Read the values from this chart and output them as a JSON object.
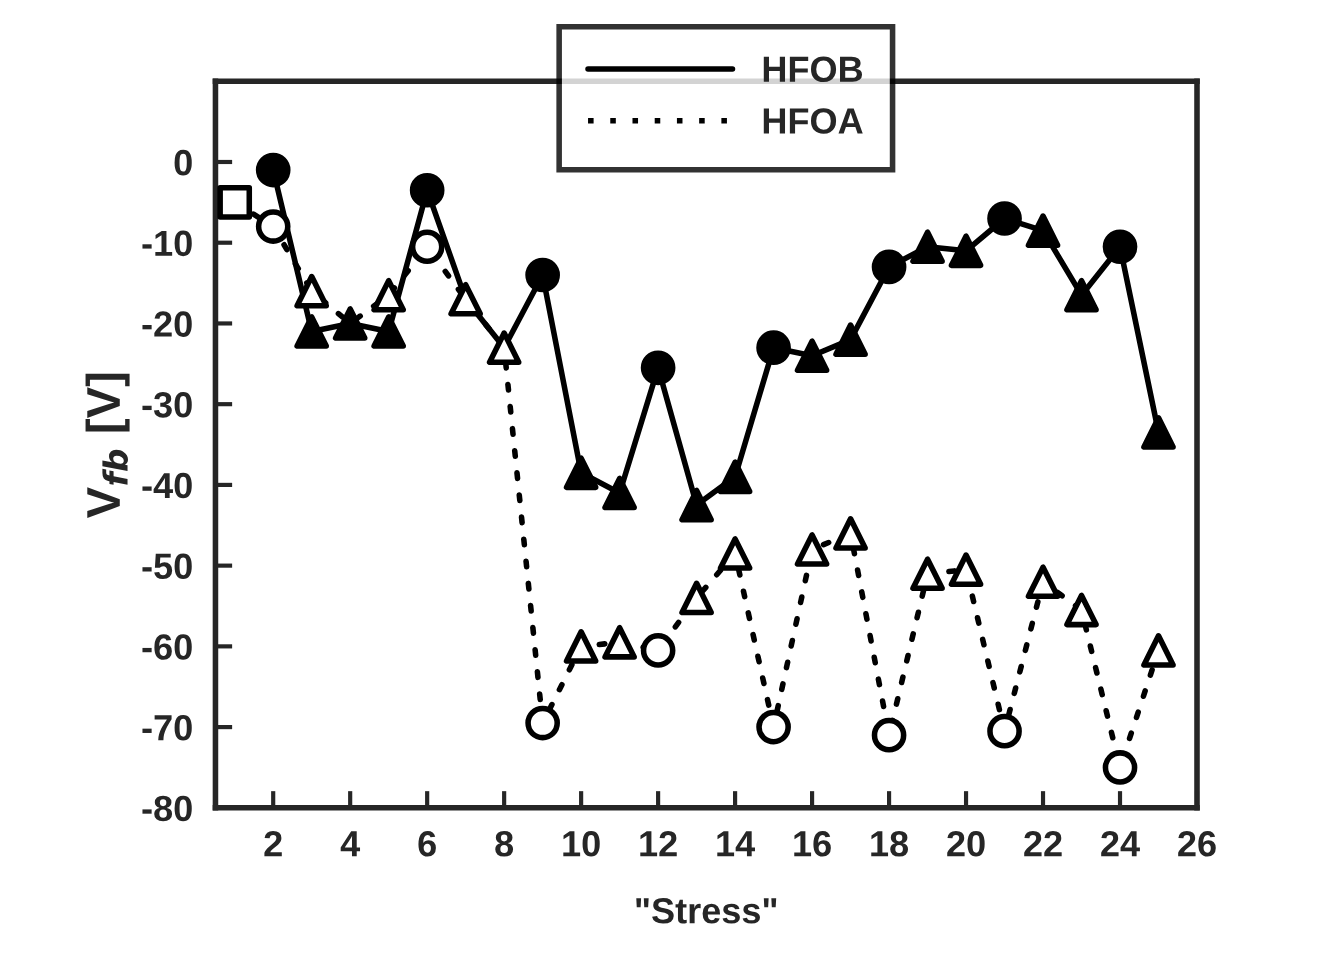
{
  "chart_data": {
    "type": "line",
    "xlabel": "\"Stress\"",
    "ylabel": "V$_{fb}$ [V]",
    "xlim": [
      0.5,
      26
    ],
    "xticks": [
      2,
      4,
      6,
      8,
      10,
      12,
      14,
      16,
      18,
      20,
      22,
      24,
      26
    ],
    "ylim": [
      -80,
      10
    ],
    "yticks": [
      -80,
      -70,
      -60,
      -50,
      -40,
      -30,
      -20,
      -10,
      0
    ],
    "grid": false,
    "legend": "top",
    "series": [
      {
        "name": "HFOB",
        "color": "#000000",
        "line_style": "solid",
        "marker": "none",
        "x": [
          2,
          3,
          4,
          5,
          6,
          7,
          8,
          9,
          10,
          11,
          12,
          13,
          14,
          15,
          16,
          17,
          18,
          19,
          20,
          21,
          22,
          23,
          24,
          25
        ],
        "values": [
          -1,
          -21,
          -20,
          -21,
          -3.5,
          -17,
          -23,
          -14,
          -38.5,
          -41,
          -25.5,
          -42.5,
          -39,
          -23,
          -24,
          -22,
          -13,
          -10.5,
          -11,
          -7,
          -8.5,
          -16.5,
          -10.5,
          -33.5
        ]
      },
      {
        "name": "HFOA",
        "color": "#000000",
        "line_style": "dotted",
        "marker": "none",
        "x": [
          1,
          2,
          3,
          4,
          5,
          6,
          7,
          8,
          9,
          10,
          11,
          12,
          13,
          14,
          15,
          16,
          17,
          18,
          19,
          20,
          21,
          22,
          23,
          24,
          25
        ],
        "values": [
          -5,
          -8,
          -16,
          -20,
          -16.5,
          -10.5,
          -17,
          -23,
          -69.5,
          -60,
          -59.5,
          -60.5,
          -54,
          -48.5,
          -70,
          -48,
          -46,
          -71,
          -51,
          -50.5,
          -70.5,
          -52,
          -55.5,
          -75,
          -60.5
        ]
      },
      {
        "type": "scatter",
        "color": "#ffffff",
        "marker": "square",
        "x": [
          1
        ],
        "values": [
          -5
        ]
      },
      {
        "type": "scatter",
        "color": "#000000",
        "marker": "circle",
        "x": [
          2,
          6,
          9,
          12,
          15,
          18,
          21,
          24
        ],
        "values": [
          -1,
          -3.5,
          -14,
          -25.5,
          -23,
          -13,
          -7,
          -10.5
        ]
      },
      {
        "type": "scatter",
        "color": "#000000",
        "marker": "triangle",
        "x": [
          3,
          4,
          5,
          10,
          11,
          13,
          14,
          16,
          17,
          19,
          20,
          22,
          23,
          25
        ],
        "values": [
          -21,
          -20,
          -21,
          -38.5,
          -41,
          -42.5,
          -39,
          -24,
          -22,
          -10.5,
          -11,
          -8.5,
          -16.5,
          -33.5
        ]
      },
      {
        "type": "scatter",
        "color": "#ffffff",
        "marker": "circle",
        "x": [
          2,
          6,
          9,
          12,
          15,
          18,
          21,
          24
        ],
        "values": [
          -8,
          -10.5,
          -69.5,
          -60.5,
          -70,
          -71,
          -70.5,
          -75
        ]
      },
      {
        "type": "scatter",
        "color": "#ffffff",
        "marker": "triangle",
        "x": [
          3,
          5,
          7,
          8,
          10,
          11,
          13,
          14,
          16,
          17,
          19,
          20,
          22,
          23,
          25
        ],
        "values": [
          -16,
          -16.5,
          -17,
          -23,
          -60,
          -59.5,
          -54,
          -48.5,
          -48,
          -46,
          -51,
          -50.5,
          -52,
          -55.5,
          -60.5
        ]
      }
    ]
  }
}
